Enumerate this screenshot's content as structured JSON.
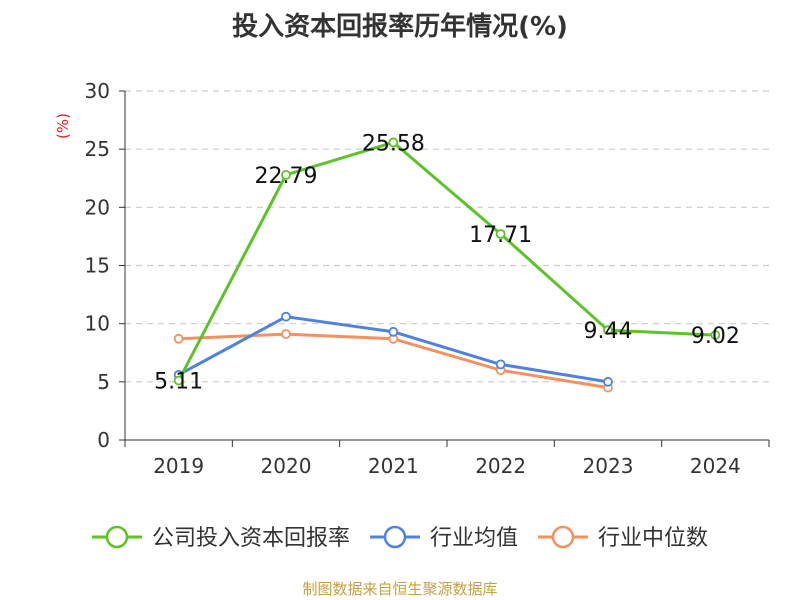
{
  "chart_data": {
    "type": "line",
    "title": "投入资本回报率历年情况(%)",
    "ylabel": "(%)",
    "xlabel": "",
    "categories": [
      "2019",
      "2020",
      "2021",
      "2022",
      "2023",
      "2024"
    ],
    "ylim": [
      0,
      30
    ],
    "yticks": [
      0,
      5,
      10,
      15,
      20,
      25,
      30
    ],
    "grid": true,
    "legend_position": "bottom",
    "series": [
      {
        "name": "公司投入资本回报率",
        "color": "#5cc326",
        "values": [
          5.11,
          22.79,
          25.58,
          17.71,
          9.44,
          9.02
        ],
        "show_labels": true
      },
      {
        "name": "行业均值",
        "color": "#4f82e0",
        "values": [
          5.6,
          10.6,
          9.3,
          6.5,
          5.0,
          null
        ],
        "show_labels": false
      },
      {
        "name": "行业中位数",
        "color": "#f5915f",
        "values": [
          8.7,
          9.1,
          8.7,
          6.0,
          4.5,
          null
        ],
        "show_labels": false
      }
    ]
  },
  "source": "制图数据来自恒生聚源数据库"
}
